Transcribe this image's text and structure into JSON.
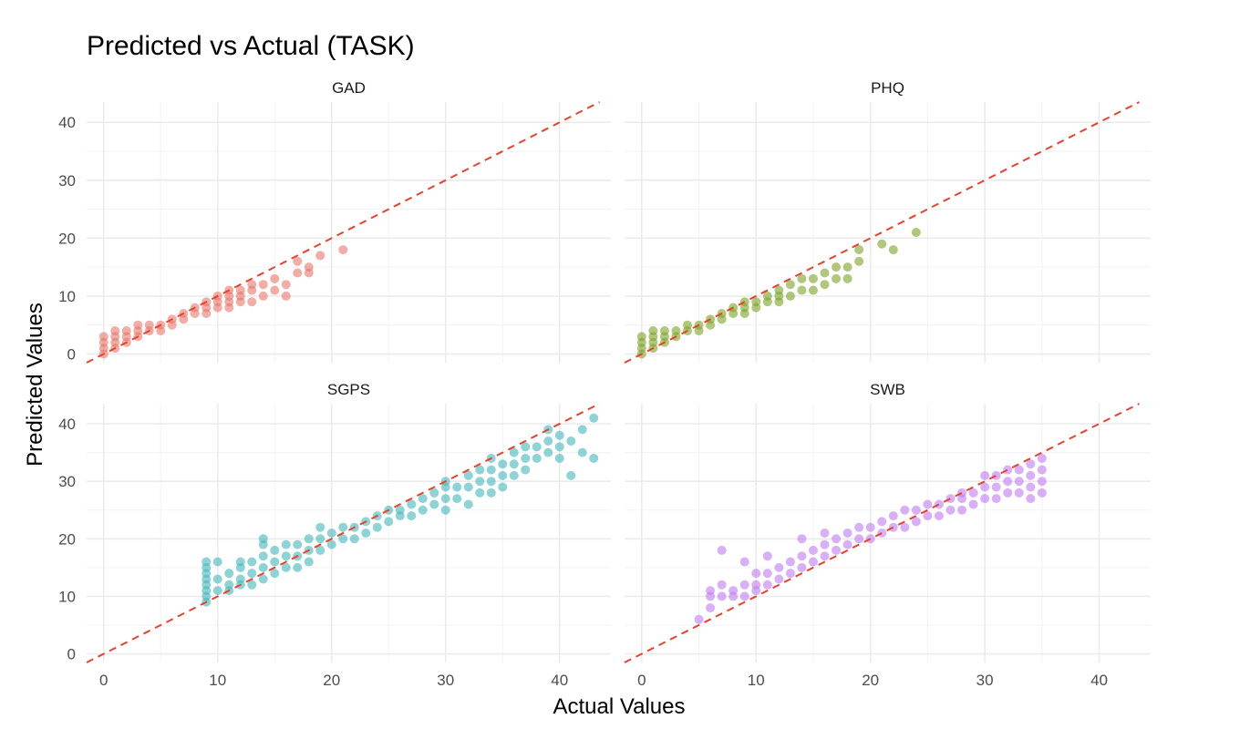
{
  "chart_data": {
    "type": "scatter",
    "title": "Predicted vs Actual (TASK)",
    "xlabel": "Actual Values",
    "ylabel": "Predicted Values",
    "xlim": [
      -1.5,
      44.5
    ],
    "ylim": [
      -1.5,
      43.5
    ],
    "x_ticks": [
      0,
      10,
      20,
      30,
      40
    ],
    "y_ticks": [
      0,
      10,
      20,
      30,
      40
    ],
    "reference_line": "y = x (dashed red)",
    "grid": true,
    "legend": "none",
    "facets": [
      {
        "name": "GAD",
        "color": "#e8766b",
        "x_range": [
          0,
          21
        ],
        "points": [
          [
            0,
            0
          ],
          [
            0,
            1
          ],
          [
            0,
            2
          ],
          [
            0,
            3
          ],
          [
            1,
            1
          ],
          [
            1,
            2
          ],
          [
            1,
            3
          ],
          [
            1,
            4
          ],
          [
            2,
            2
          ],
          [
            2,
            3
          ],
          [
            2,
            4
          ],
          [
            3,
            3
          ],
          [
            3,
            4
          ],
          [
            3,
            5
          ],
          [
            4,
            4
          ],
          [
            4,
            5
          ],
          [
            5,
            4
          ],
          [
            5,
            5
          ],
          [
            6,
            5
          ],
          [
            6,
            6
          ],
          [
            7,
            6
          ],
          [
            7,
            7
          ],
          [
            8,
            7
          ],
          [
            8,
            8
          ],
          [
            9,
            7
          ],
          [
            9,
            8
          ],
          [
            9,
            9
          ],
          [
            10,
            8
          ],
          [
            10,
            9
          ],
          [
            10,
            10
          ],
          [
            11,
            8
          ],
          [
            11,
            9
          ],
          [
            11,
            10
          ],
          [
            11,
            11
          ],
          [
            12,
            9
          ],
          [
            12,
            10
          ],
          [
            12,
            11
          ],
          [
            13,
            9
          ],
          [
            13,
            11
          ],
          [
            13,
            12
          ],
          [
            14,
            10
          ],
          [
            14,
            12
          ],
          [
            15,
            11
          ],
          [
            15,
            13
          ],
          [
            16,
            10
          ],
          [
            16,
            12
          ],
          [
            17,
            14
          ],
          [
            17,
            16
          ],
          [
            18,
            14
          ],
          [
            18,
            15
          ],
          [
            19,
            17
          ],
          [
            21,
            18
          ]
        ]
      },
      {
        "name": "PHQ",
        "color": "#7ca325",
        "x_range": [
          0,
          24
        ],
        "points": [
          [
            0,
            0
          ],
          [
            0,
            1
          ],
          [
            0,
            2
          ],
          [
            0,
            3
          ],
          [
            1,
            1
          ],
          [
            1,
            2
          ],
          [
            1,
            3
          ],
          [
            1,
            4
          ],
          [
            2,
            2
          ],
          [
            2,
            3
          ],
          [
            2,
            4
          ],
          [
            3,
            3
          ],
          [
            3,
            4
          ],
          [
            4,
            4
          ],
          [
            4,
            5
          ],
          [
            5,
            4
          ],
          [
            5,
            5
          ],
          [
            6,
            5
          ],
          [
            6,
            6
          ],
          [
            7,
            6
          ],
          [
            7,
            7
          ],
          [
            8,
            7
          ],
          [
            8,
            8
          ],
          [
            9,
            7
          ],
          [
            9,
            8
          ],
          [
            9,
            9
          ],
          [
            10,
            8
          ],
          [
            10,
            9
          ],
          [
            11,
            9
          ],
          [
            11,
            10
          ],
          [
            12,
            9
          ],
          [
            12,
            10
          ],
          [
            12,
            11
          ],
          [
            13,
            10
          ],
          [
            13,
            12
          ],
          [
            14,
            11
          ],
          [
            14,
            13
          ],
          [
            15,
            11
          ],
          [
            15,
            13
          ],
          [
            16,
            12
          ],
          [
            16,
            14
          ],
          [
            17,
            13
          ],
          [
            17,
            15
          ],
          [
            18,
            13
          ],
          [
            18,
            15
          ],
          [
            19,
            16
          ],
          [
            19,
            18
          ],
          [
            21,
            19
          ],
          [
            22,
            18
          ],
          [
            24,
            21
          ]
        ]
      },
      {
        "name": "SGPS",
        "color": "#42b7bb",
        "x_range": [
          9,
          43
        ],
        "points": [
          [
            9,
            9
          ],
          [
            9,
            10
          ],
          [
            9,
            11
          ],
          [
            9,
            12
          ],
          [
            9,
            13
          ],
          [
            9,
            14
          ],
          [
            9,
            15
          ],
          [
            9,
            16
          ],
          [
            10,
            11
          ],
          [
            10,
            13
          ],
          [
            10,
            16
          ],
          [
            11,
            11
          ],
          [
            11,
            12
          ],
          [
            11,
            14
          ],
          [
            12,
            12
          ],
          [
            12,
            13
          ],
          [
            12,
            15
          ],
          [
            12,
            16
          ],
          [
            13,
            12
          ],
          [
            13,
            14
          ],
          [
            13,
            16
          ],
          [
            14,
            13
          ],
          [
            14,
            15
          ],
          [
            14,
            17
          ],
          [
            14,
            19
          ],
          [
            14,
            20
          ],
          [
            15,
            14
          ],
          [
            15,
            16
          ],
          [
            15,
            18
          ],
          [
            16,
            15
          ],
          [
            16,
            17
          ],
          [
            16,
            19
          ],
          [
            17,
            15
          ],
          [
            17,
            17
          ],
          [
            17,
            19
          ],
          [
            18,
            16
          ],
          [
            18,
            18
          ],
          [
            18,
            20
          ],
          [
            19,
            18
          ],
          [
            19,
            20
          ],
          [
            19,
            22
          ],
          [
            20,
            19
          ],
          [
            20,
            21
          ],
          [
            21,
            20
          ],
          [
            21,
            22
          ],
          [
            22,
            20
          ],
          [
            22,
            22
          ],
          [
            23,
            21
          ],
          [
            23,
            23
          ],
          [
            24,
            22
          ],
          [
            24,
            24
          ],
          [
            25,
            23
          ],
          [
            25,
            25
          ],
          [
            26,
            24
          ],
          [
            26,
            25
          ],
          [
            27,
            24
          ],
          [
            27,
            26
          ],
          [
            28,
            25
          ],
          [
            28,
            27
          ],
          [
            29,
            26
          ],
          [
            29,
            28
          ],
          [
            30,
            25
          ],
          [
            30,
            27
          ],
          [
            30,
            29
          ],
          [
            30,
            30
          ],
          [
            31,
            27
          ],
          [
            31,
            29
          ],
          [
            32,
            26
          ],
          [
            32,
            29
          ],
          [
            32,
            31
          ],
          [
            33,
            28
          ],
          [
            33,
            30
          ],
          [
            33,
            32
          ],
          [
            34,
            28
          ],
          [
            34,
            30
          ],
          [
            34,
            32
          ],
          [
            34,
            34
          ],
          [
            35,
            29
          ],
          [
            35,
            31
          ],
          [
            35,
            33
          ],
          [
            36,
            31
          ],
          [
            36,
            33
          ],
          [
            36,
            35
          ],
          [
            37,
            32
          ],
          [
            37,
            34
          ],
          [
            37,
            36
          ],
          [
            38,
            34
          ],
          [
            38,
            36
          ],
          [
            39,
            35
          ],
          [
            39,
            37
          ],
          [
            39,
            39
          ],
          [
            40,
            34
          ],
          [
            40,
            36
          ],
          [
            40,
            38
          ],
          [
            41,
            31
          ],
          [
            41,
            37
          ],
          [
            42,
            35
          ],
          [
            42,
            39
          ],
          [
            43,
            34
          ],
          [
            43,
            41
          ]
        ]
      },
      {
        "name": "SWB",
        "color": "#c07cf3",
        "x_range": [
          5,
          35
        ],
        "points": [
          [
            5,
            6
          ],
          [
            6,
            8
          ],
          [
            6,
            10
          ],
          [
            6,
            11
          ],
          [
            7,
            10
          ],
          [
            7,
            12
          ],
          [
            7,
            18
          ],
          [
            8,
            10
          ],
          [
            8,
            11
          ],
          [
            9,
            10
          ],
          [
            9,
            12
          ],
          [
            9,
            16
          ],
          [
            10,
            11
          ],
          [
            10,
            12
          ],
          [
            10,
            14
          ],
          [
            11,
            12
          ],
          [
            11,
            14
          ],
          [
            11,
            17
          ],
          [
            12,
            13
          ],
          [
            12,
            15
          ],
          [
            13,
            14
          ],
          [
            13,
            16
          ],
          [
            14,
            15
          ],
          [
            14,
            17
          ],
          [
            14,
            20
          ],
          [
            15,
            16
          ],
          [
            15,
            18
          ],
          [
            16,
            17
          ],
          [
            16,
            19
          ],
          [
            16,
            21
          ],
          [
            17,
            18
          ],
          [
            17,
            20
          ],
          [
            18,
            19
          ],
          [
            18,
            21
          ],
          [
            19,
            20
          ],
          [
            19,
            22
          ],
          [
            20,
            20
          ],
          [
            20,
            22
          ],
          [
            21,
            21
          ],
          [
            21,
            23
          ],
          [
            22,
            22
          ],
          [
            22,
            24
          ],
          [
            23,
            22
          ],
          [
            23,
            25
          ],
          [
            24,
            23
          ],
          [
            24,
            25
          ],
          [
            25,
            24
          ],
          [
            25,
            26
          ],
          [
            26,
            24
          ],
          [
            26,
            26
          ],
          [
            27,
            25
          ],
          [
            27,
            27
          ],
          [
            28,
            25
          ],
          [
            28,
            27
          ],
          [
            28,
            28
          ],
          [
            29,
            26
          ],
          [
            29,
            28
          ],
          [
            30,
            27
          ],
          [
            30,
            29
          ],
          [
            30,
            31
          ],
          [
            31,
            27
          ],
          [
            31,
            29
          ],
          [
            31,
            31
          ],
          [
            32,
            28
          ],
          [
            32,
            30
          ],
          [
            32,
            32
          ],
          [
            33,
            28
          ],
          [
            33,
            30
          ],
          [
            33,
            32
          ],
          [
            34,
            27
          ],
          [
            34,
            29
          ],
          [
            34,
            31
          ],
          [
            34,
            33
          ],
          [
            35,
            28
          ],
          [
            35,
            30
          ],
          [
            35,
            32
          ],
          [
            35,
            34
          ]
        ]
      }
    ]
  }
}
